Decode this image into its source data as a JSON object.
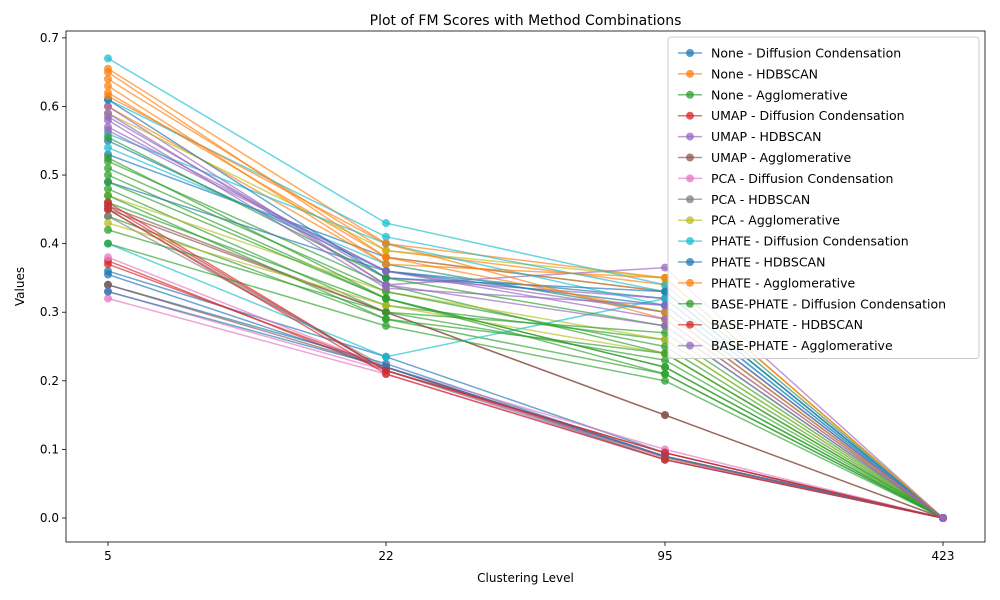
{
  "chart_data": {
    "type": "line",
    "title": "Plot of FM Scores with Method Combinations",
    "xlabel": "Clustering Level",
    "ylabel": "Values",
    "categories": [
      "5",
      "22",
      "95",
      "423"
    ],
    "ylim": [
      -0.035,
      0.71
    ],
    "yticks": [
      "0.0",
      "0.1",
      "0.2",
      "0.3",
      "0.4",
      "0.5",
      "0.6",
      "0.7"
    ],
    "grid": false,
    "legend_position": "top-right",
    "series": [
      {
        "name": "None - Diffusion Condensation",
        "color": "#1f77b4",
        "runs": [
          [
            0.355,
            0.22,
            0.085,
            0.0
          ],
          [
            0.34,
            0.225,
            0.09,
            0.0
          ],
          [
            0.36,
            0.235,
            0.095,
            0.0
          ],
          [
            0.53,
            0.38,
            0.33,
            0.0
          ],
          [
            0.55,
            0.36,
            0.32,
            0.0
          ]
        ]
      },
      {
        "name": "None - HDBSCAN",
        "color": "#ff7f0e",
        "runs": [
          [
            0.655,
            0.4,
            0.35,
            0.0
          ],
          [
            0.64,
            0.39,
            0.34,
            0.0
          ],
          [
            0.62,
            0.38,
            0.33,
            0.0
          ],
          [
            0.6,
            0.37,
            0.3,
            0.0
          ]
        ]
      },
      {
        "name": "None - Agglomerative",
        "color": "#2ca02c",
        "runs": [
          [
            0.52,
            0.34,
            0.24,
            0.0
          ],
          [
            0.5,
            0.32,
            0.22,
            0.0
          ],
          [
            0.48,
            0.3,
            0.23,
            0.0
          ],
          [
            0.46,
            0.31,
            0.26,
            0.0
          ],
          [
            0.44,
            0.29,
            0.21,
            0.0
          ]
        ]
      },
      {
        "name": "UMAP - Diffusion Condensation",
        "color": "#d62728",
        "runs": [
          [
            0.375,
            0.215,
            0.09,
            0.0
          ],
          [
            0.37,
            0.22,
            0.088,
            0.0
          ],
          [
            0.455,
            0.215,
            0.095,
            0.0
          ]
        ]
      },
      {
        "name": "UMAP - HDBSCAN",
        "color": "#9467bd",
        "runs": [
          [
            0.6,
            0.34,
            0.365,
            0.0
          ],
          [
            0.585,
            0.35,
            0.32,
            0.0
          ],
          [
            0.57,
            0.36,
            0.3,
            0.0
          ]
        ]
      },
      {
        "name": "UMAP - Agglomerative",
        "color": "#8c564b",
        "runs": [
          [
            0.45,
            0.3,
            0.15,
            0.0
          ],
          [
            0.455,
            0.3,
            0.15,
            0.0
          ],
          [
            0.34,
            0.22,
            0.09,
            0.0
          ]
        ]
      },
      {
        "name": "PCA - Diffusion Condensation",
        "color": "#e377c2",
        "runs": [
          [
            0.32,
            0.21,
            0.085,
            0.0
          ],
          [
            0.33,
            0.215,
            0.09,
            0.0
          ],
          [
            0.38,
            0.22,
            0.1,
            0.0
          ]
        ]
      },
      {
        "name": "PCA - HDBSCAN",
        "color": "#7f7f7f",
        "runs": [
          [
            0.45,
            0.215,
            0.085,
            0.0
          ],
          [
            0.44,
            0.22,
            0.09,
            0.0
          ]
        ]
      },
      {
        "name": "PCA - Agglomerative",
        "color": "#bcbd22",
        "runs": [
          [
            0.59,
            0.39,
            0.35,
            0.0
          ],
          [
            0.47,
            0.33,
            0.26,
            0.0
          ],
          [
            0.43,
            0.31,
            0.24,
            0.0
          ]
        ]
      },
      {
        "name": "PHATE - Diffusion Condensation",
        "color": "#17becf",
        "runs": [
          [
            0.67,
            0.43,
            0.34,
            0.0
          ],
          [
            0.61,
            0.41,
            0.33,
            0.0
          ],
          [
            0.4,
            0.235,
            0.32,
            0.0
          ],
          [
            0.56,
            0.4,
            0.31,
            0.0
          ],
          [
            0.54,
            0.37,
            0.3,
            0.0
          ]
        ]
      },
      {
        "name": "PHATE - HDBSCAN",
        "color": "#1f77b4",
        "runs": [
          [
            0.33,
            0.22,
            0.09,
            0.0
          ],
          [
            0.61,
            0.35,
            0.33,
            0.0
          ],
          [
            0.49,
            0.36,
            0.31,
            0.0
          ]
        ]
      },
      {
        "name": "PHATE - Agglomerative",
        "color": "#ff7f0e",
        "runs": [
          [
            0.65,
            0.38,
            0.3,
            0.0
          ],
          [
            0.615,
            0.4,
            0.29,
            0.0
          ],
          [
            0.63,
            0.37,
            0.35,
            0.0
          ]
        ]
      },
      {
        "name": "BASE-PHATE - Diffusion Condensation",
        "color": "#2ca02c",
        "runs": [
          [
            0.555,
            0.35,
            0.28,
            0.0
          ],
          [
            0.51,
            0.33,
            0.25,
            0.0
          ],
          [
            0.49,
            0.32,
            0.22,
            0.0
          ],
          [
            0.47,
            0.29,
            0.24,
            0.0
          ],
          [
            0.42,
            0.3,
            0.27,
            0.0
          ],
          [
            0.4,
            0.28,
            0.2,
            0.0
          ],
          [
            0.525,
            0.32,
            0.21,
            0.0
          ]
        ]
      },
      {
        "name": "BASE-PHATE - HDBSCAN",
        "color": "#d62728",
        "runs": [
          [
            0.46,
            0.215,
            0.095,
            0.0
          ],
          [
            0.45,
            0.21,
            0.085,
            0.0
          ]
        ]
      },
      {
        "name": "BASE-PHATE - Agglomerative",
        "color": "#9467bd",
        "runs": [
          [
            0.58,
            0.335,
            0.31,
            0.0
          ],
          [
            0.59,
            0.34,
            0.28,
            0.0
          ],
          [
            0.565,
            0.36,
            0.29,
            0.0
          ]
        ]
      }
    ]
  }
}
